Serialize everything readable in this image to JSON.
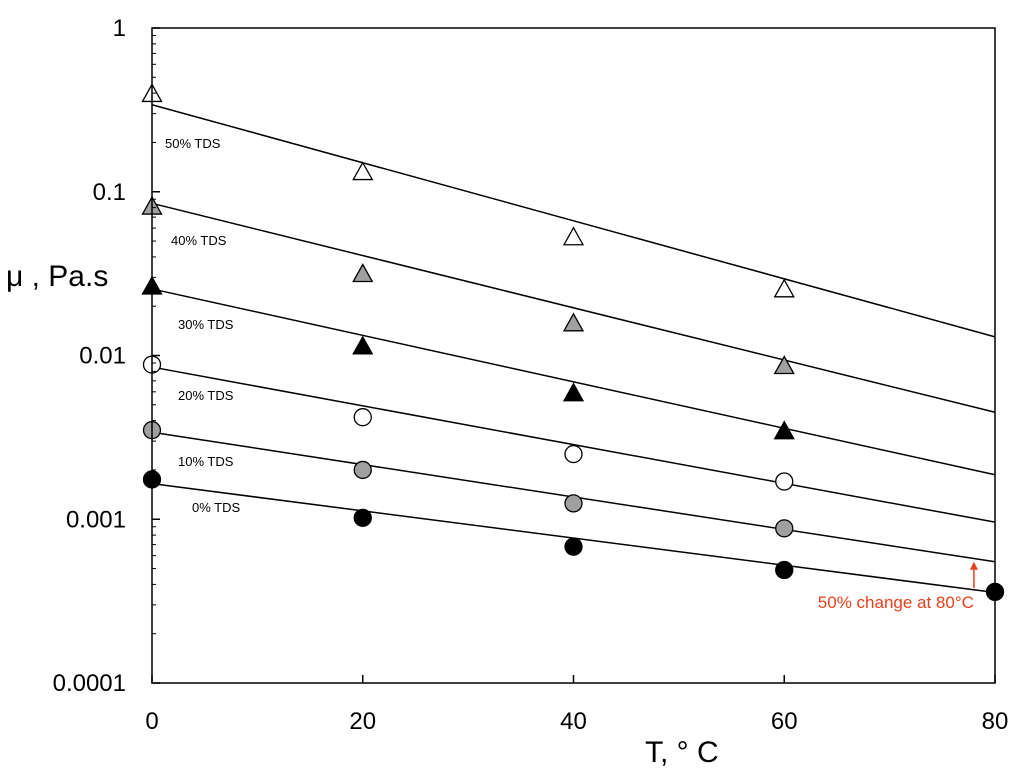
{
  "chart_data": {
    "type": "scatter",
    "title": "",
    "xlabel": "T, ° C",
    "ylabel": "μ , Pa.s",
    "xlim": [
      0,
      80
    ],
    "ylim": [
      0.0001,
      1
    ],
    "y_scale": "log",
    "grid": false,
    "x_ticks": [
      0,
      20,
      40,
      60,
      80
    ],
    "x_tick_labels": [
      "0",
      "20",
      "40",
      "60",
      "80"
    ],
    "y_ticks": [
      0.0001,
      0.001,
      0.01,
      0.1,
      1
    ],
    "y_tick_labels": [
      "0.0001",
      "0.001",
      "0.01",
      "0.1",
      "1"
    ],
    "series": [
      {
        "name": "0% TDS",
        "marker": "circle",
        "fill": "#000000",
        "x": [
          0,
          20,
          40,
          60,
          80
        ],
        "y": [
          0.00175,
          0.00102,
          0.00068,
          0.00049,
          0.00036
        ],
        "fit_y": [
          0.00165,
          0.000357
        ]
      },
      {
        "name": "10% TDS",
        "marker": "circle",
        "fill": "#a0a0a0",
        "x": [
          0,
          20,
          40,
          60
        ],
        "y": [
          0.0035,
          0.002,
          0.00125,
          0.00088
        ],
        "fit_y": [
          0.0034,
          0.00055
        ]
      },
      {
        "name": "20% TDS",
        "marker": "circle",
        "fill": "#ffffff",
        "x": [
          0,
          20,
          40,
          60
        ],
        "y": [
          0.0088,
          0.0042,
          0.0025,
          0.0017
        ],
        "fit_y": [
          0.0085,
          0.00096
        ]
      },
      {
        "name": "30% TDS",
        "marker": "triangle",
        "fill": "#000000",
        "x": [
          0,
          20,
          40,
          60
        ],
        "y": [
          0.026,
          0.0112,
          0.0058,
          0.0034
        ],
        "fit_y": [
          0.0255,
          0.00187
        ]
      },
      {
        "name": "40% TDS",
        "marker": "triangle",
        "fill": "#a0a0a0",
        "x": [
          0,
          20,
          40,
          60
        ],
        "y": [
          0.08,
          0.031,
          0.0155,
          0.0085
        ],
        "fit_y": [
          0.085,
          0.0045
        ]
      },
      {
        "name": "50% TDS",
        "marker": "triangle",
        "fill": "#ffffff",
        "x": [
          0,
          20,
          40,
          60
        ],
        "y": [
          0.39,
          0.13,
          0.052,
          0.025
        ],
        "fit_y": [
          0.34,
          0.013
        ]
      }
    ],
    "annotation": {
      "text": "50% change at 80°C",
      "color": "#e8401c",
      "arrow_x": 78,
      "arrow_from_y": 0.00038,
      "arrow_to_y": 0.00055
    }
  }
}
